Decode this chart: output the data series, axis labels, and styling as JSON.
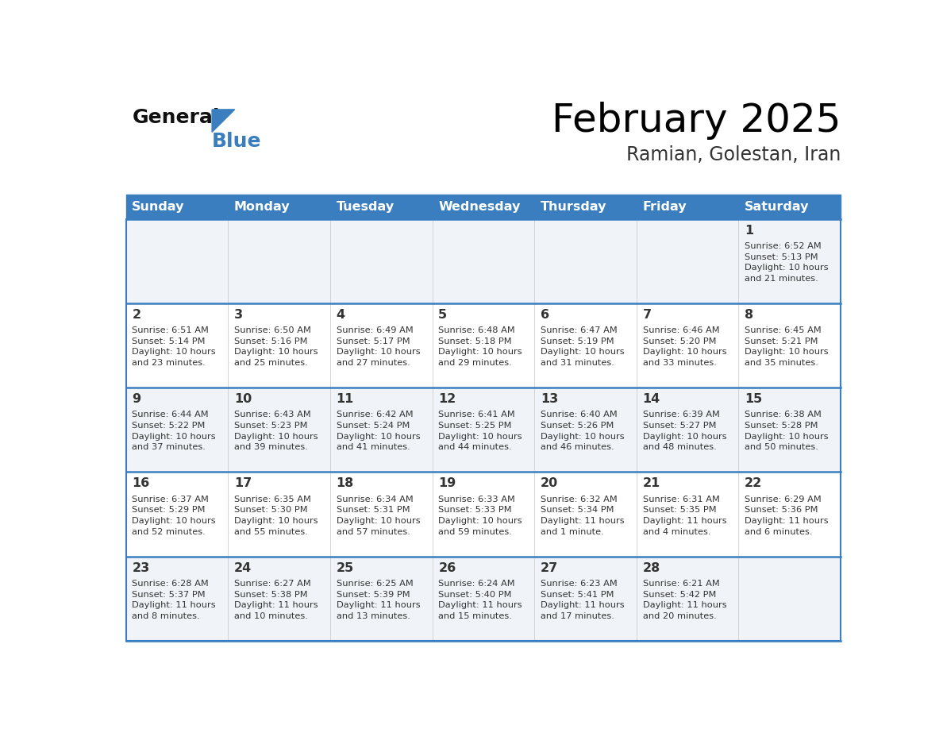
{
  "title": "February 2025",
  "subtitle": "Ramian, Golestan, Iran",
  "header_color": "#3a7ebf",
  "header_text_color": "#ffffff",
  "cell_bg_even": "#f0f4f8",
  "cell_bg_odd": "#ffffff",
  "border_color": "#3a7ebf",
  "day_headers": [
    "Sunday",
    "Monday",
    "Tuesday",
    "Wednesday",
    "Thursday",
    "Friday",
    "Saturday"
  ],
  "title_color": "#000000",
  "subtitle_color": "#333333",
  "day_num_color": "#333333",
  "info_color": "#333333",
  "weeks": [
    [
      {
        "day": 0,
        "info": ""
      },
      {
        "day": 0,
        "info": ""
      },
      {
        "day": 0,
        "info": ""
      },
      {
        "day": 0,
        "info": ""
      },
      {
        "day": 0,
        "info": ""
      },
      {
        "day": 0,
        "info": ""
      },
      {
        "day": 1,
        "info": "Sunrise: 6:52 AM\nSunset: 5:13 PM\nDaylight: 10 hours\nand 21 minutes."
      }
    ],
    [
      {
        "day": 2,
        "info": "Sunrise: 6:51 AM\nSunset: 5:14 PM\nDaylight: 10 hours\nand 23 minutes."
      },
      {
        "day": 3,
        "info": "Sunrise: 6:50 AM\nSunset: 5:16 PM\nDaylight: 10 hours\nand 25 minutes."
      },
      {
        "day": 4,
        "info": "Sunrise: 6:49 AM\nSunset: 5:17 PM\nDaylight: 10 hours\nand 27 minutes."
      },
      {
        "day": 5,
        "info": "Sunrise: 6:48 AM\nSunset: 5:18 PM\nDaylight: 10 hours\nand 29 minutes."
      },
      {
        "day": 6,
        "info": "Sunrise: 6:47 AM\nSunset: 5:19 PM\nDaylight: 10 hours\nand 31 minutes."
      },
      {
        "day": 7,
        "info": "Sunrise: 6:46 AM\nSunset: 5:20 PM\nDaylight: 10 hours\nand 33 minutes."
      },
      {
        "day": 8,
        "info": "Sunrise: 6:45 AM\nSunset: 5:21 PM\nDaylight: 10 hours\nand 35 minutes."
      }
    ],
    [
      {
        "day": 9,
        "info": "Sunrise: 6:44 AM\nSunset: 5:22 PM\nDaylight: 10 hours\nand 37 minutes."
      },
      {
        "day": 10,
        "info": "Sunrise: 6:43 AM\nSunset: 5:23 PM\nDaylight: 10 hours\nand 39 minutes."
      },
      {
        "day": 11,
        "info": "Sunrise: 6:42 AM\nSunset: 5:24 PM\nDaylight: 10 hours\nand 41 minutes."
      },
      {
        "day": 12,
        "info": "Sunrise: 6:41 AM\nSunset: 5:25 PM\nDaylight: 10 hours\nand 44 minutes."
      },
      {
        "day": 13,
        "info": "Sunrise: 6:40 AM\nSunset: 5:26 PM\nDaylight: 10 hours\nand 46 minutes."
      },
      {
        "day": 14,
        "info": "Sunrise: 6:39 AM\nSunset: 5:27 PM\nDaylight: 10 hours\nand 48 minutes."
      },
      {
        "day": 15,
        "info": "Sunrise: 6:38 AM\nSunset: 5:28 PM\nDaylight: 10 hours\nand 50 minutes."
      }
    ],
    [
      {
        "day": 16,
        "info": "Sunrise: 6:37 AM\nSunset: 5:29 PM\nDaylight: 10 hours\nand 52 minutes."
      },
      {
        "day": 17,
        "info": "Sunrise: 6:35 AM\nSunset: 5:30 PM\nDaylight: 10 hours\nand 55 minutes."
      },
      {
        "day": 18,
        "info": "Sunrise: 6:34 AM\nSunset: 5:31 PM\nDaylight: 10 hours\nand 57 minutes."
      },
      {
        "day": 19,
        "info": "Sunrise: 6:33 AM\nSunset: 5:33 PM\nDaylight: 10 hours\nand 59 minutes."
      },
      {
        "day": 20,
        "info": "Sunrise: 6:32 AM\nSunset: 5:34 PM\nDaylight: 11 hours\nand 1 minute."
      },
      {
        "day": 21,
        "info": "Sunrise: 6:31 AM\nSunset: 5:35 PM\nDaylight: 11 hours\nand 4 minutes."
      },
      {
        "day": 22,
        "info": "Sunrise: 6:29 AM\nSunset: 5:36 PM\nDaylight: 11 hours\nand 6 minutes."
      }
    ],
    [
      {
        "day": 23,
        "info": "Sunrise: 6:28 AM\nSunset: 5:37 PM\nDaylight: 11 hours\nand 8 minutes."
      },
      {
        "day": 24,
        "info": "Sunrise: 6:27 AM\nSunset: 5:38 PM\nDaylight: 11 hours\nand 10 minutes."
      },
      {
        "day": 25,
        "info": "Sunrise: 6:25 AM\nSunset: 5:39 PM\nDaylight: 11 hours\nand 13 minutes."
      },
      {
        "day": 26,
        "info": "Sunrise: 6:24 AM\nSunset: 5:40 PM\nDaylight: 11 hours\nand 15 minutes."
      },
      {
        "day": 27,
        "info": "Sunrise: 6:23 AM\nSunset: 5:41 PM\nDaylight: 11 hours\nand 17 minutes."
      },
      {
        "day": 28,
        "info": "Sunrise: 6:21 AM\nSunset: 5:42 PM\nDaylight: 11 hours\nand 20 minutes."
      },
      {
        "day": 0,
        "info": ""
      }
    ]
  ]
}
